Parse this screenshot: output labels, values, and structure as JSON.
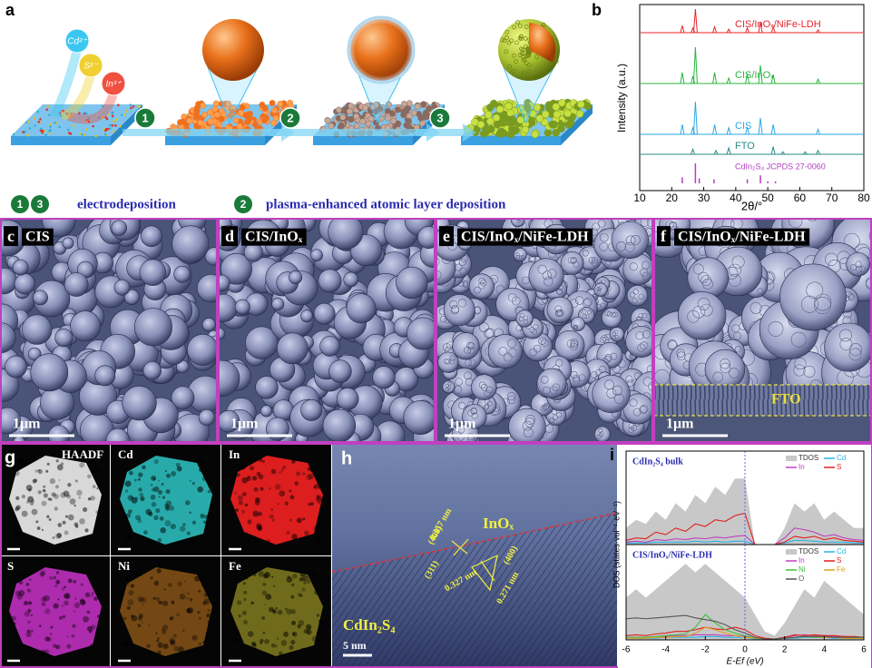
{
  "chart_data": [
    {
      "type": "line",
      "label": "b",
      "ylabel": "Intensity (a.u.)",
      "xlabel": "2θ/°",
      "xlim": [
        10,
        80
      ],
      "xticks": [
        10,
        20,
        30,
        40,
        50,
        60,
        70,
        80
      ],
      "series": [
        {
          "name": "CIS/InOₓ/NiFe-LDH",
          "color": "#e8242a",
          "peaks": [
            23.3,
            26.6,
            27.4,
            33.4,
            37.8,
            43.6,
            47.7,
            51.7,
            65.7
          ],
          "intensities": [
            0.3,
            0.2,
            1,
            0.25,
            0.15,
            0.2,
            0.45,
            0.25,
            0.12
          ]
        },
        {
          "name": "CIS/InOₓ",
          "color": "#2ab440",
          "peaks": [
            23.3,
            26.6,
            27.4,
            33.4,
            37.8,
            43.6,
            47.7,
            51.7,
            65.7
          ],
          "intensities": [
            0.3,
            0.2,
            1,
            0.3,
            0.15,
            0.25,
            0.5,
            0.25,
            0.12
          ]
        },
        {
          "name": "CIS",
          "color": "#2aa8e0",
          "peaks": [
            23.3,
            26.6,
            27.4,
            33.4,
            37.8,
            43.6,
            47.7,
            51.7,
            65.7
          ],
          "intensities": [
            0.3,
            0.2,
            1,
            0.3,
            0.2,
            0.2,
            0.5,
            0.3,
            0.15
          ]
        },
        {
          "name": "FTO",
          "color": "#2a8a8a",
          "peaks": [
            26.6,
            33.8,
            37.8,
            51.7,
            54.7,
            61.7,
            65.7
          ],
          "intensities": [
            0.4,
            0.3,
            0.5,
            0.6,
            0.2,
            0.2,
            0.3
          ]
        },
        {
          "name": "CdIn₂S₄ JCPDS 27-0060",
          "color": "#b040c0",
          "style": "bars",
          "peaks": [
            23.3,
            27.4,
            28.6,
            33.2,
            43.6,
            47.7,
            50.0,
            52.4
          ],
          "intensities": [
            0.3,
            1,
            0.25,
            0.2,
            0.2,
            0.4,
            0.1,
            0.1
          ]
        }
      ]
    },
    {
      "type": "line",
      "label": "i",
      "title": "CdIn₂S₄ bulk",
      "ylim": [
        0,
        10
      ],
      "xlim": [
        -6,
        6
      ],
      "x": [
        -6,
        -5.5,
        -5,
        -4.5,
        -4,
        -3.5,
        -3,
        -2.5,
        -2,
        -1.5,
        -1,
        -0.5,
        0,
        0.5,
        1,
        1.5,
        2,
        2.5,
        3,
        3.5,
        4,
        4.5,
        5,
        5.5,
        6
      ],
      "series": [
        {
          "name": "TDOS",
          "color": "#c8c8c8",
          "style": "area",
          "values": [
            2,
            3,
            2.5,
            4,
            3,
            5,
            4,
            6,
            5,
            7,
            6,
            8,
            8,
            0,
            0,
            0,
            2,
            5,
            4,
            5,
            3,
            4,
            3,
            2,
            2
          ]
        },
        {
          "name": "Cd",
          "color": "#28b4e6",
          "values": [
            0.2,
            0.2,
            0.2,
            0.3,
            0.3,
            0.3,
            0.3,
            0.4,
            0.3,
            0.4,
            0.3,
            0.4,
            0.4,
            0,
            0,
            0,
            0.2,
            0.5,
            0.5,
            0.4,
            0.3,
            0.3,
            0.3,
            0.2,
            0.2
          ]
        },
        {
          "name": "In",
          "color": "#c040c0",
          "values": [
            0.3,
            0.4,
            0.3,
            0.6,
            0.5,
            0.7,
            0.6,
            0.8,
            0.7,
            0.9,
            0.8,
            1,
            1.1,
            0,
            0,
            0,
            0.8,
            2,
            1.8,
            1.5,
            1,
            1.2,
            0.8,
            0.6,
            0.5
          ]
        },
        {
          "name": "S",
          "color": "#e02020",
          "values": [
            0.5,
            0.8,
            0.7,
            1.5,
            1.2,
            2,
            1.6,
            2.5,
            2.2,
            3,
            2.8,
            3.5,
            3.8,
            0,
            0,
            0,
            0.3,
            1,
            0.8,
            1,
            0.6,
            0.8,
            0.5,
            0.4,
            0.3
          ]
        }
      ]
    },
    {
      "type": "line",
      "title": "CIS/InOₓ/NiFe-LDH",
      "ylim": [
        0,
        10
      ],
      "xlim": [
        -6,
        6
      ],
      "xticks": [
        -6,
        -4,
        -2,
        0,
        2,
        4,
        6
      ],
      "xlabel": "E-Ef (eV)",
      "ylabel": "DOS (states·vol⁻¹·eV⁻¹)",
      "x": [
        -6,
        -5.5,
        -5,
        -4.5,
        -4,
        -3.5,
        -3,
        -2.5,
        -2,
        -1.5,
        -1,
        -0.5,
        0,
        0.5,
        1,
        1.5,
        2,
        2.5,
        3,
        3.5,
        4,
        4.5,
        5,
        5.5,
        6
      ],
      "series": [
        {
          "name": "TDOS",
          "color": "#c8c8c8",
          "style": "area",
          "values": [
            5,
            6,
            5,
            6,
            7,
            8,
            9,
            8,
            9,
            8,
            7,
            6,
            5,
            3,
            1,
            0.5,
            2,
            4,
            6,
            5,
            7,
            6,
            5,
            4,
            3
          ]
        },
        {
          "name": "Cd",
          "color": "#28b4e6",
          "values": [
            0.2,
            0.2,
            0.2,
            0.2,
            0.3,
            0.3,
            0.3,
            0.3,
            0.4,
            0.4,
            0.3,
            0.3,
            0.3,
            0.1,
            0.1,
            0.1,
            0.2,
            0.2,
            0.3,
            0.3,
            0.3,
            0.2,
            0.2,
            0.2,
            0.2
          ]
        },
        {
          "name": "In",
          "color": "#c040c0",
          "values": [
            0.3,
            0.3,
            0.3,
            0.4,
            0.4,
            0.5,
            0.5,
            0.6,
            0.6,
            0.6,
            0.5,
            0.5,
            0.4,
            0.2,
            0.1,
            0.1,
            0.3,
            0.5,
            0.6,
            0.5,
            0.5,
            0.4,
            0.4,
            0.3,
            0.3
          ]
        },
        {
          "name": "S",
          "color": "#e02020",
          "values": [
            0.5,
            0.6,
            0.5,
            0.7,
            0.8,
            1,
            1,
            1.2,
            1.5,
            1.3,
            1.2,
            1.5,
            1.2,
            0.5,
            0.2,
            0.1,
            0.3,
            0.6,
            0.5,
            0.6,
            0.5,
            0.5,
            0.4,
            0.4,
            0.3
          ]
        },
        {
          "name": "Ni",
          "color": "#40c040",
          "values": [
            0.3,
            0.3,
            0.3,
            0.4,
            0.5,
            0.6,
            0.7,
            1.5,
            3,
            2,
            1.2,
            0.8,
            0.5,
            0.2,
            0.1,
            0.1,
            0.2,
            0.3,
            0.4,
            0.3,
            0.3,
            0.3,
            0.2,
            0.2,
            0.2
          ]
        },
        {
          "name": "Fe",
          "color": "#e0a020",
          "values": [
            0.2,
            0.2,
            0.2,
            0.3,
            0.3,
            0.4,
            0.4,
            0.8,
            1.5,
            1.2,
            0.8,
            0.5,
            0.3,
            0.2,
            0.1,
            0.1,
            0.2,
            0.3,
            0.4,
            0.4,
            0.3,
            0.3,
            0.2,
            0.2,
            0.2
          ]
        },
        {
          "name": "O",
          "color": "#555555",
          "values": [
            2.5,
            2.6,
            2.5,
            2.6,
            2.7,
            2.8,
            2.9,
            2.6,
            2.4,
            2.2,
            1.8,
            1.2,
            0.8,
            0.3,
            0.1,
            0.1,
            0.2,
            0.3,
            0.4,
            0.4,
            0.4,
            0.3,
            0.3,
            0.3,
            0.3
          ]
        }
      ]
    }
  ],
  "panels": {
    "a": {
      "label": "a",
      "ions": [
        "Cd²⁺",
        "S²⁻",
        "In³⁺"
      ],
      "steps": [
        "1",
        "2",
        "3"
      ],
      "legend": {
        "steps_1": [
          "1",
          "3"
        ],
        "text_1": "electrodeposition",
        "steps_2": [
          "2"
        ],
        "text_2": "plasma-enhanced atomic layer deposition"
      }
    },
    "sem": [
      {
        "label": "c",
        "title": "CIS",
        "scale": "1μm"
      },
      {
        "label": "d",
        "title": "CIS/InOₓ",
        "scale": "1μm"
      },
      {
        "label": "e",
        "title": "CIS/InOₓ/NiFe-LDH",
        "scale": "1μm"
      },
      {
        "label": "f",
        "title": "CIS/InOₓ/NiFe-LDH",
        "scale": "1μm",
        "layer": "FTO"
      }
    ],
    "g": {
      "label": "g",
      "maps": [
        "HAADF",
        "Cd",
        "In",
        "S",
        "Ni",
        "Fe"
      ]
    },
    "h": {
      "label": "h",
      "shell": "InOₓ",
      "core": "CdIn₂S₄",
      "scale": "5 nm",
      "annotations": [
        "0.357 nm",
        "(400)",
        "(311)",
        "0.327 nm",
        "(400)",
        "0.271 nm"
      ]
    }
  }
}
